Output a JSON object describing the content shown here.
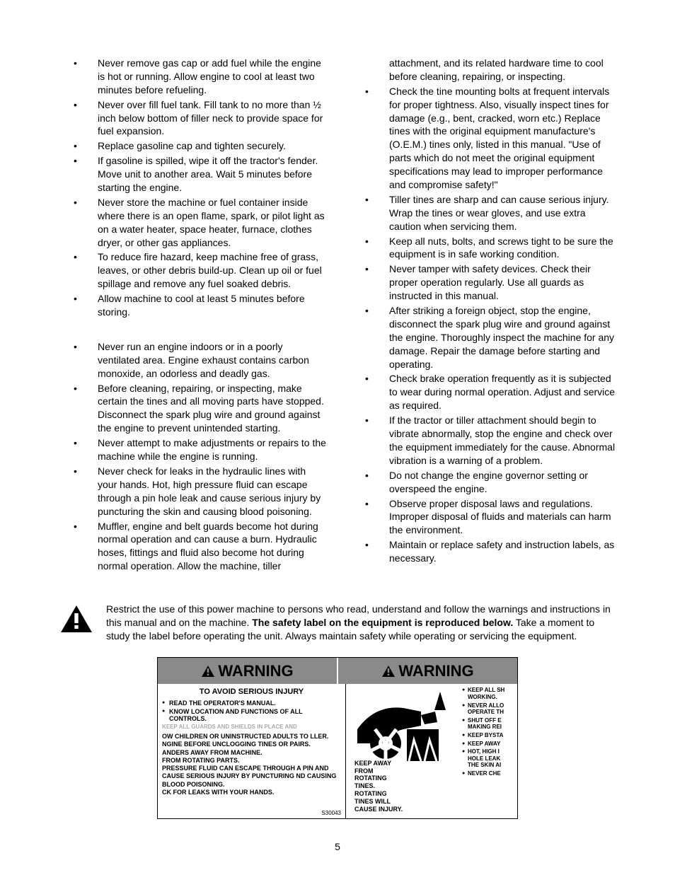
{
  "leftColumn": {
    "group1": [
      "Never remove gas cap or add fuel while the engine is hot or running. Allow engine to cool at least two minutes before refueling.",
      "Never over fill fuel tank. Fill tank to no more than ½ inch below bottom of filler neck to provide space for fuel expansion.",
      "Replace gasoline cap and tighten securely.",
      "If gasoline is spilled, wipe it off the tractor's fender. Move unit to another area. Wait 5 minutes before starting the engine.",
      "Never store the machine or fuel container inside where there is an open flame, spark, or pilot light as on a water heater, space heater, furnace, clothes dryer, or other gas appliances.",
      "To reduce fire hazard, keep machine free of grass, leaves, or other debris build-up. Clean up oil or fuel spillage and remove any fuel soaked debris.",
      "Allow machine to cool at least 5 minutes before storing."
    ],
    "group2": [
      "Never run an engine indoors or in a poorly ventilated area. Engine exhaust contains carbon monoxide, an odorless and deadly gas.",
      "Before cleaning, repairing, or inspecting, make certain the tines and all moving parts have stopped. Disconnect the spark plug wire and ground against the engine to prevent unintended starting.",
      "Never attempt to make adjustments or repairs to the machine while the engine is running.",
      "Never check for leaks in the hydraulic lines with your hands. Hot, high pressure fluid can escape through a pin hole leak and cause serious injury by puncturing the skin and causing blood poisoning.",
      "Muffler, engine and belt guards become hot during normal operation and can cause a burn. Hydraulic hoses, fittings and fluid also become hot during normal operation. Allow the machine, tiller"
    ]
  },
  "rightColumn": [
    "attachment, and its related hardware time to cool before cleaning, repairing, or inspecting.",
    "Check the tine mounting bolts at frequent intervals for proper tightness. Also, visually inspect tines for damage (e.g., bent, cracked, worn etc.) Replace tines with the original equipment manufacture's (O.E.M.) tines only, listed in this manual. \"Use of parts which do not meet the original equipment specifications may lead to improper performance and compromise safety!\"",
    "Tiller tines are sharp and can cause serious injury. Wrap the tines or wear gloves, and use extra caution when servicing them.",
    "Keep all nuts, bolts, and screws tight to be sure the equipment is in safe working condition.",
    "Never tamper with safety devices. Check their proper operation regularly. Use all guards as instructed in this manual.",
    "After striking a foreign object, stop the engine, disconnect the spark plug wire and ground against the engine. Thoroughly inspect the machine for any damage. Repair the damage before starting and operating.",
    "Check brake operation frequently as it is subjected to wear during normal operation. Adjust and service as required.",
    "If the tractor or tiller attachment should begin to vibrate abnormally, stop the engine and check over the equipment immediately for the cause. Abnormal vibration is a warning of a problem.",
    "Do not change the engine governor setting or overspeed the engine.",
    "Observe proper disposal laws and regulations. Improper disposal of fluids and materials can harm the environment.",
    "Maintain or replace safety and instruction labels, as necessary."
  ],
  "safetyBlock": {
    "pre": "Restrict the use of this power machine to persons who read, understand and follow the warnings and instructions in this manual and on the machine. ",
    "bold": "The safety label on the equipment is reproduced below.",
    "post": " Take a moment to study the label before operating the unit. Always maintain safety while operating or servicing the equipment."
  },
  "label": {
    "warningWord": "WARNING",
    "leftPanel": {
      "heading": "TO AVOID SERIOUS INJURY",
      "items": [
        "READ THE OPERATOR'S MANUAL.",
        "KNOW LOCATION AND FUNCTIONS OF ALL CONTROLS."
      ],
      "fadedTop": "KEEP ALL GUARDS AND SHIELDS IN PLACE AND",
      "cutoff": [
        "OW CHILDREN OR UNINSTRUCTED ADULTS TO LLER.",
        "NGINE BEFORE UNCLOGGING TINES OR PAIRS.",
        "ANDERS AWAY FROM MACHINE.",
        "FROM ROTATING PARTS.",
        "PRESSURE FLUID CAN ESCAPE THROUGH A PIN AND CAUSE SERIOUS INJURY BY PUNCTURING ND CAUSING BLOOD POISONING.",
        "CK FOR LEAKS WITH YOUR HANDS."
      ],
      "ref": "S30043"
    },
    "rightPanel": {
      "caption": "KEEP AWAY FROM ROTATING TINES. ROTATING TINES WILL CAUSE INJURY.",
      "sideItems": [
        "KEEP ALL SH WORKING.",
        "NEVER ALLO OPERATE TH",
        "SHUT OFF E MAKING REI",
        "KEEP BYSTA",
        "KEEP AWAY",
        "HOT, HIGH I HOLE LEAK THE SKIN AI",
        "NEVER CHE"
      ]
    }
  },
  "pageNumber": "5"
}
